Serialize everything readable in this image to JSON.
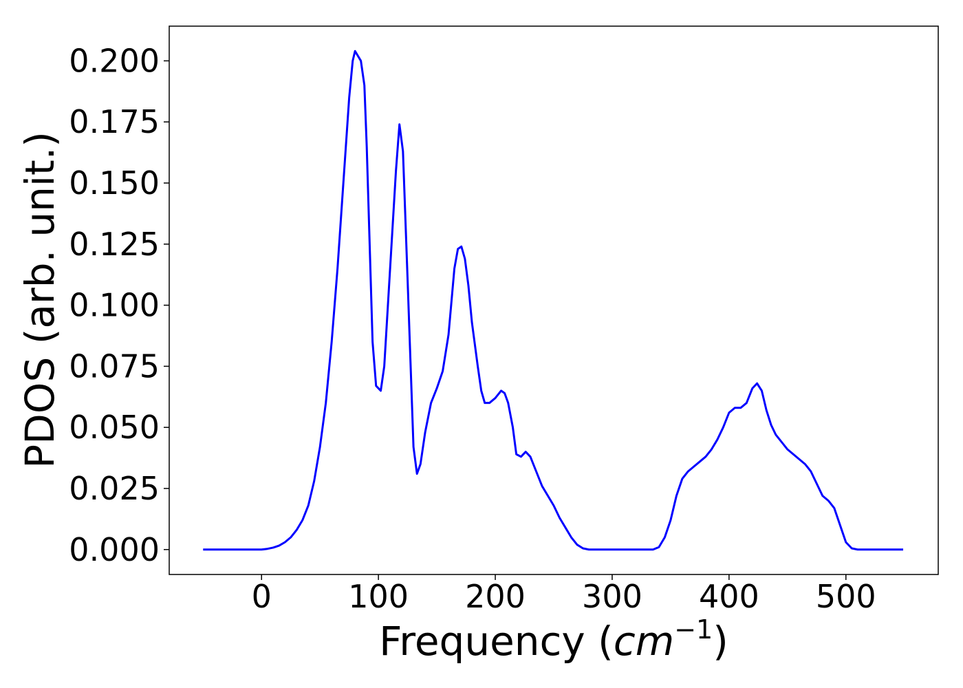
{
  "chart_data": {
    "type": "line",
    "x_label": [
      "Frequency (",
      "cm",
      "−1",
      ")"
    ],
    "y_label": "PDOS (arb. unit.)",
    "x": [
      -50,
      -40,
      -30,
      -20,
      -10,
      0,
      5,
      10,
      15,
      20,
      25,
      30,
      35,
      40,
      45,
      50,
      55,
      60,
      65,
      70,
      75,
      78,
      80,
      85,
      88,
      90,
      95,
      98,
      102,
      105,
      110,
      115,
      118,
      121,
      125,
      130,
      133,
      136,
      140,
      145,
      150,
      155,
      160,
      165,
      168,
      171,
      174,
      177,
      180,
      185,
      188,
      191,
      195,
      200,
      205,
      208,
      211,
      215,
      218,
      222,
      226,
      230,
      235,
      240,
      245,
      250,
      255,
      260,
      265,
      270,
      275,
      280,
      290,
      300,
      310,
      320,
      330,
      335,
      340,
      345,
      350,
      355,
      360,
      365,
      370,
      375,
      380,
      385,
      390,
      395,
      400,
      405,
      410,
      415,
      420,
      424,
      428,
      432,
      436,
      440,
      445,
      450,
      455,
      460,
      465,
      470,
      475,
      480,
      485,
      490,
      495,
      500,
      505,
      510,
      520,
      530,
      540,
      549
    ],
    "series": [
      {
        "name": "PDOS",
        "color": "#0000ff",
        "values": [
          0,
          0,
          0,
          0,
          0,
          0,
          0.0003,
          0.0008,
          0.0016,
          0.003,
          0.005,
          0.008,
          0.012,
          0.018,
          0.028,
          0.042,
          0.06,
          0.085,
          0.115,
          0.15,
          0.185,
          0.2,
          0.204,
          0.2,
          0.19,
          0.165,
          0.085,
          0.067,
          0.065,
          0.075,
          0.115,
          0.155,
          0.174,
          0.163,
          0.11,
          0.042,
          0.031,
          0.035,
          0.048,
          0.06,
          0.066,
          0.073,
          0.088,
          0.115,
          0.123,
          0.124,
          0.119,
          0.108,
          0.093,
          0.075,
          0.065,
          0.06,
          0.06,
          0.062,
          0.065,
          0.064,
          0.06,
          0.05,
          0.039,
          0.038,
          0.04,
          0.038,
          0.032,
          0.026,
          0.022,
          0.018,
          0.013,
          0.009,
          0.005,
          0.002,
          0.0005,
          0,
          0,
          0,
          0,
          0,
          0,
          0,
          0.001,
          0.005,
          0.012,
          0.022,
          0.029,
          0.032,
          0.034,
          0.036,
          0.038,
          0.041,
          0.045,
          0.05,
          0.056,
          0.058,
          0.058,
          0.06,
          0.066,
          0.068,
          0.065,
          0.057,
          0.051,
          0.047,
          0.044,
          0.041,
          0.039,
          0.037,
          0.035,
          0.032,
          0.027,
          0.022,
          0.02,
          0.017,
          0.01,
          0.003,
          0.0005,
          0,
          0,
          0,
          0,
          0
        ]
      }
    ],
    "xlim": [
      -79,
      579
    ],
    "ylim": [
      -0.0102,
      0.2142
    ],
    "xticks": [
      0,
      100,
      200,
      300,
      400,
      500
    ],
    "yticks": [
      {
        "value": 0,
        "label": "0.000"
      },
      0.025,
      {
        "value": 0.05,
        "label": "0.050"
      },
      0.075,
      {
        "value": 0.1,
        "label": "0.100"
      },
      0.125,
      {
        "value": 0.15,
        "label": "0.150"
      },
      0.175,
      {
        "value": 0.2,
        "label": "0.200"
      }
    ]
  }
}
